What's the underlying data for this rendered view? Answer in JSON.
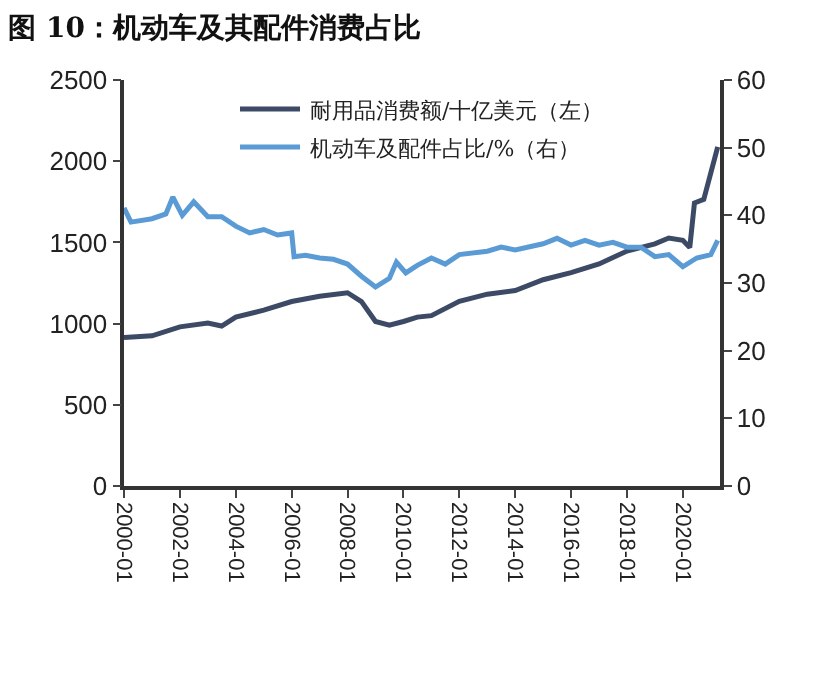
{
  "chart_data": {
    "type": "line",
    "title": "图 10：机动车及其配件消费占比",
    "xlim": [
      "2000-01",
      "2021-05"
    ],
    "xticks": [
      "2000-01",
      "2002-01",
      "2004-01",
      "2006-01",
      "2008-01",
      "2010-01",
      "2012-01",
      "2014-01",
      "2016-01",
      "2018-01",
      "2020-01"
    ],
    "ylim": [
      0,
      2500
    ],
    "yticks": [
      0,
      500,
      1000,
      1500,
      2000,
      2500
    ],
    "y2lim": [
      0,
      60
    ],
    "y2ticks": [
      0,
      10,
      20,
      30,
      40,
      50,
      60
    ],
    "legend": "top",
    "grid": false,
    "series": [
      {
        "name": "耐用品消费额/十亿美元（左）",
        "color": "#3d4a66",
        "x": [
          "2000-01",
          "2001-01",
          "2002-01",
          "2003-01",
          "2003-07",
          "2004-01",
          "2005-01",
          "2006-01",
          "2007-01",
          "2008-01",
          "2008-07",
          "2009-01",
          "2009-07",
          "2010-01",
          "2010-07",
          "2011-01",
          "2012-01",
          "2013-01",
          "2014-01",
          "2015-01",
          "2016-01",
          "2017-01",
          "2018-01",
          "2019-01",
          "2019-07",
          "2020-01",
          "2020-04",
          "2020-06",
          "2020-10",
          "2021-04"
        ],
        "values": [
          915,
          925,
          980,
          1003,
          985,
          1040,
          1083,
          1136,
          1168,
          1190,
          1136,
          1013,
          990,
          1013,
          1040,
          1049,
          1137,
          1181,
          1204,
          1270,
          1314,
          1367,
          1447,
          1491,
          1527,
          1513,
          1469,
          1743,
          1765,
          2088
        ]
      },
      {
        "name": "机动车及配件占比/%（右）",
        "color": "#5b9bd5",
        "axis": "y2",
        "x": [
          "2000-01",
          "2000-04",
          "2001-01",
          "2001-07",
          "2001-10",
          "2002-02",
          "2002-07",
          "2003-01",
          "2003-07",
          "2004-01",
          "2004-07",
          "2005-01",
          "2005-07",
          "2006-01",
          "2006-02",
          "2006-07",
          "2007-01",
          "2007-07",
          "2008-01",
          "2008-07",
          "2009-01",
          "2009-07",
          "2009-10",
          "2010-02",
          "2010-07",
          "2011-01",
          "2011-07",
          "2012-01",
          "2013-01",
          "2013-07",
          "2014-01",
          "2015-01",
          "2015-07",
          "2016-01",
          "2016-07",
          "2017-01",
          "2017-07",
          "2018-01",
          "2018-07",
          "2019-01",
          "2019-07",
          "2020-01",
          "2020-07",
          "2021-01",
          "2021-04"
        ],
        "values": [
          41.1,
          39.0,
          39.5,
          40.2,
          42.7,
          40.0,
          42.0,
          39.8,
          39.8,
          38.4,
          37.4,
          37.9,
          37.1,
          37.4,
          33.9,
          34.1,
          33.7,
          33.5,
          32.8,
          31.0,
          29.4,
          30.7,
          33.1,
          31.5,
          32.6,
          33.7,
          32.8,
          34.2,
          34.7,
          35.3,
          34.9,
          35.8,
          36.6,
          35.6,
          36.3,
          35.6,
          36.0,
          35.3,
          35.3,
          33.9,
          34.2,
          32.4,
          33.7,
          34.2,
          36.3
        ]
      }
    ]
  }
}
